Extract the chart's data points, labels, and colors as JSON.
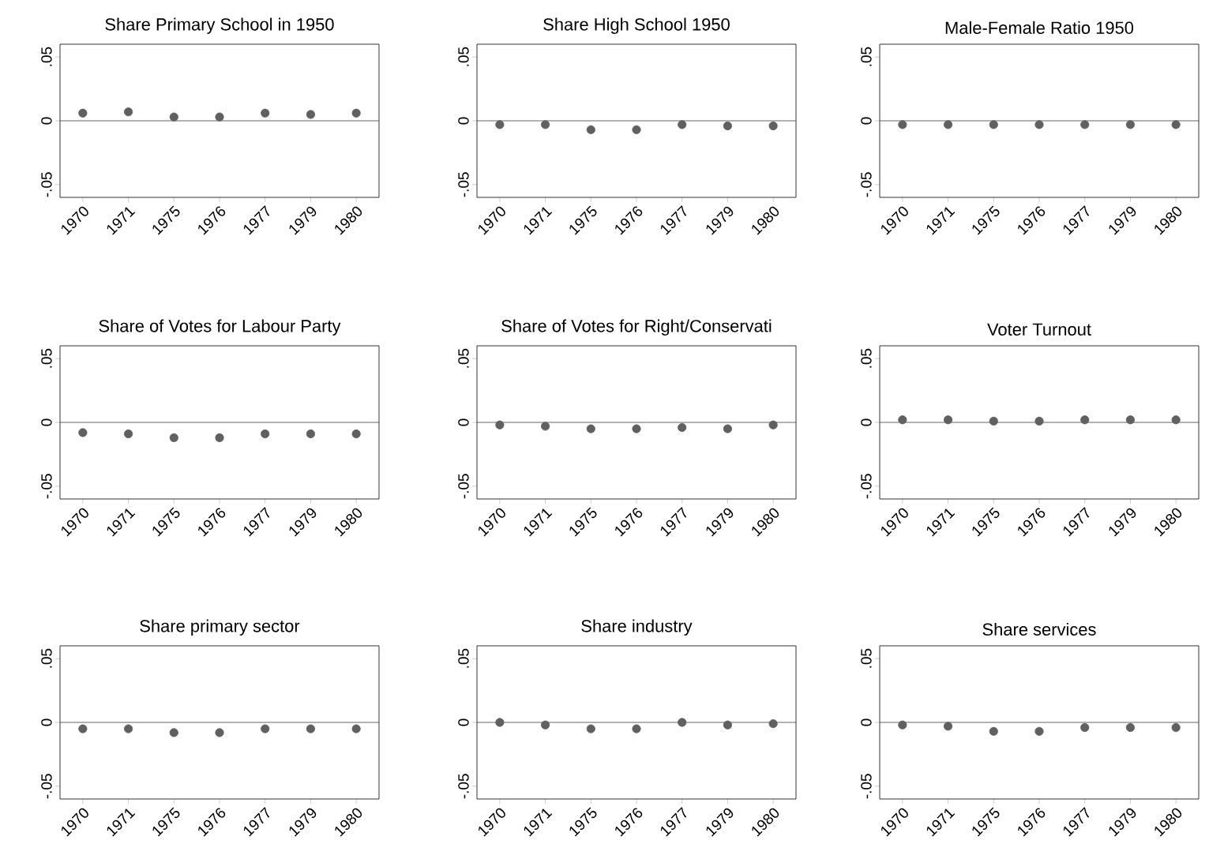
{
  "chart_data": [
    {
      "type": "scatter",
      "title": "Share Primary School in 1950",
      "categories": [
        "1970",
        "1971",
        "1975",
        "1976",
        "1977",
        "1979",
        "1980"
      ],
      "values": [
        0.006,
        0.007,
        0.003,
        0.003,
        0.006,
        0.005,
        0.006
      ],
      "color": "#606060",
      "marker": "circle",
      "ylim": [
        -0.06,
        0.06
      ],
      "yticks": [
        {
          "value": -0.05,
          "label": "-.05"
        },
        {
          "value": 0,
          "label": "0"
        },
        {
          "value": 0.05,
          "label": ".05"
        }
      ],
      "ref_lines": [
        {
          "axis": "y",
          "value": 0,
          "color": "#404040"
        }
      ]
    },
    {
      "type": "scatter",
      "title": "Share High School 1950",
      "categories": [
        "1970",
        "1971",
        "1975",
        "1976",
        "1977",
        "1979",
        "1980"
      ],
      "values": [
        -0.003,
        -0.003,
        -0.007,
        -0.007,
        -0.003,
        -0.004,
        -0.004
      ],
      "color": "#606060",
      "marker": "circle",
      "ylim": [
        -0.06,
        0.06
      ],
      "yticks": [
        {
          "value": -0.05,
          "label": "-.05"
        },
        {
          "value": 0,
          "label": "0"
        },
        {
          "value": 0.05,
          "label": ".05"
        }
      ],
      "ref_lines": [
        {
          "axis": "y",
          "value": 0,
          "color": "#404040"
        }
      ]
    },
    {
      "type": "scatter",
      "title": "Male-Female Ratio 1950",
      "categories": [
        "1970",
        "1971",
        "1975",
        "1976",
        "1977",
        "1979",
        "1980"
      ],
      "values": [
        -0.003,
        -0.003,
        -0.003,
        -0.003,
        -0.003,
        -0.003,
        -0.003
      ],
      "color": "#606060",
      "marker": "circle",
      "ylim": [
        -0.06,
        0.06
      ],
      "yticks": [
        {
          "value": -0.05,
          "label": "-.05"
        },
        {
          "value": 0,
          "label": "0"
        },
        {
          "value": 0.05,
          "label": ".05"
        }
      ],
      "ref_lines": [
        {
          "axis": "y",
          "value": 0,
          "color": "#404040"
        }
      ]
    },
    {
      "type": "scatter",
      "title": "Share of Votes for Labour Party",
      "categories": [
        "1970",
        "1971",
        "1975",
        "1976",
        "1977",
        "1979",
        "1980"
      ],
      "values": [
        -0.008,
        -0.009,
        -0.012,
        -0.012,
        -0.009,
        -0.009,
        -0.009
      ],
      "color": "#606060",
      "marker": "circle",
      "ylim": [
        -0.06,
        0.06
      ],
      "yticks": [
        {
          "value": -0.05,
          "label": "-.05"
        },
        {
          "value": 0,
          "label": "0"
        },
        {
          "value": 0.05,
          "label": ".05"
        }
      ],
      "ref_lines": [
        {
          "axis": "y",
          "value": 0,
          "color": "#404040"
        }
      ]
    },
    {
      "type": "scatter",
      "title": "Share of Votes for Right/Conservati",
      "categories": [
        "1970",
        "1971",
        "1975",
        "1976",
        "1977",
        "1979",
        "1980"
      ],
      "values": [
        -0.002,
        -0.003,
        -0.005,
        -0.005,
        -0.004,
        -0.005,
        -0.002
      ],
      "color": "#606060",
      "marker": "circle",
      "ylim": [
        -0.06,
        0.06
      ],
      "yticks": [
        {
          "value": -0.05,
          "label": "-.05"
        },
        {
          "value": 0,
          "label": "0"
        },
        {
          "value": 0.05,
          "label": ".05"
        }
      ],
      "ref_lines": [
        {
          "axis": "y",
          "value": 0,
          "color": "#404040"
        }
      ]
    },
    {
      "type": "scatter",
      "title": "Voter Turnout",
      "categories": [
        "1970",
        "1971",
        "1975",
        "1976",
        "1977",
        "1979",
        "1980"
      ],
      "values": [
        0.002,
        0.002,
        0.001,
        0.001,
        0.002,
        0.002,
        0.002
      ],
      "color": "#606060",
      "marker": "circle",
      "ylim": [
        -0.06,
        0.06
      ],
      "yticks": [
        {
          "value": -0.05,
          "label": "-.05"
        },
        {
          "value": 0,
          "label": "0"
        },
        {
          "value": 0.05,
          "label": ".05"
        }
      ],
      "ref_lines": [
        {
          "axis": "y",
          "value": 0,
          "color": "#404040"
        }
      ]
    },
    {
      "type": "scatter",
      "title": "Share primary sector",
      "categories": [
        "1970",
        "1971",
        "1975",
        "1976",
        "1977",
        "1979",
        "1980"
      ],
      "values": [
        -0.005,
        -0.005,
        -0.008,
        -0.008,
        -0.005,
        -0.005,
        -0.005
      ],
      "color": "#606060",
      "marker": "circle",
      "ylim": [
        -0.06,
        0.06
      ],
      "yticks": [
        {
          "value": -0.05,
          "label": "-.05"
        },
        {
          "value": 0,
          "label": "0"
        },
        {
          "value": 0.05,
          "label": ".05"
        }
      ],
      "ref_lines": [
        {
          "axis": "y",
          "value": 0,
          "color": "#404040"
        }
      ]
    },
    {
      "type": "scatter",
      "title": "Share industry",
      "categories": [
        "1970",
        "1971",
        "1975",
        "1976",
        "1977",
        "1979",
        "1980"
      ],
      "values": [
        0.0,
        -0.002,
        -0.005,
        -0.005,
        0.0,
        -0.002,
        -0.001
      ],
      "color": "#606060",
      "marker": "circle",
      "ylim": [
        -0.06,
        0.06
      ],
      "yticks": [
        {
          "value": -0.05,
          "label": "-.05"
        },
        {
          "value": 0,
          "label": "0"
        },
        {
          "value": 0.05,
          "label": ".05"
        }
      ],
      "ref_lines": [
        {
          "axis": "y",
          "value": 0,
          "color": "#404040"
        }
      ]
    },
    {
      "type": "scatter",
      "title": "Share services",
      "categories": [
        "1970",
        "1971",
        "1975",
        "1976",
        "1977",
        "1979",
        "1980"
      ],
      "values": [
        -0.002,
        -0.003,
        -0.007,
        -0.007,
        -0.004,
        -0.004,
        -0.004
      ],
      "color": "#606060",
      "marker": "circle",
      "ylim": [
        -0.06,
        0.06
      ],
      "yticks": [
        {
          "value": -0.05,
          "label": "-.05"
        },
        {
          "value": 0,
          "label": "0"
        },
        {
          "value": 0.05,
          "label": ".05"
        }
      ],
      "ref_lines": [
        {
          "axis": "y",
          "value": 0,
          "color": "#404040"
        }
      ]
    }
  ]
}
